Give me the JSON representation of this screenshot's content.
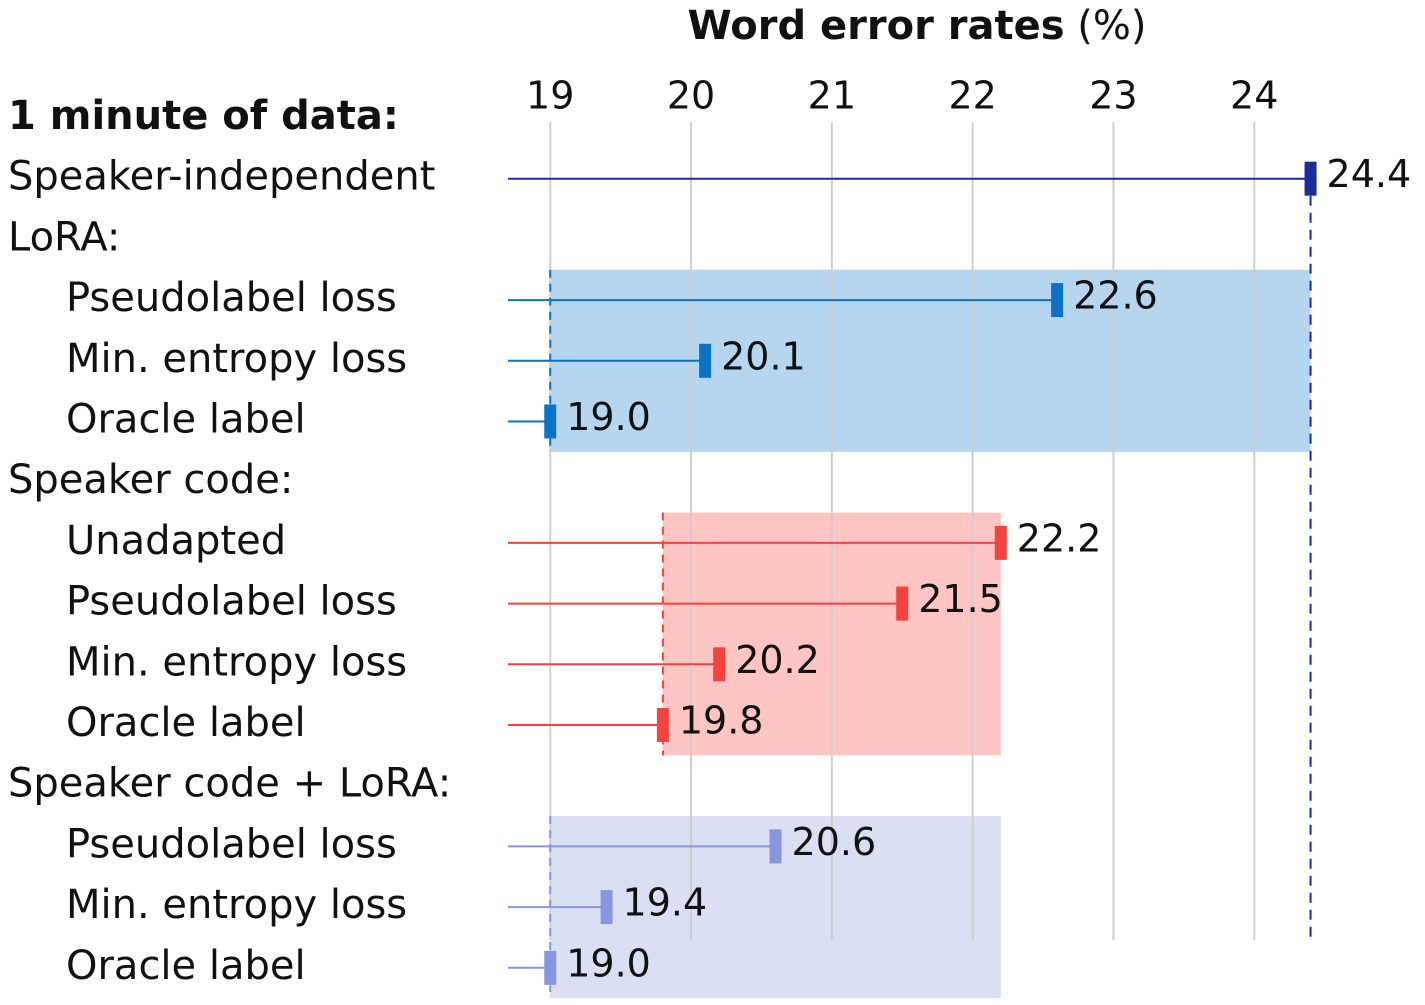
{
  "chart_data": {
    "type": "dot",
    "title": "Word error rates",
    "unit": "(%)",
    "heading": "1 minute of data:",
    "xlim": [
      18.7,
      24.7
    ],
    "xticks": [
      19,
      20,
      21,
      22,
      23,
      24
    ],
    "grid": true,
    "groups": [
      {
        "name": null,
        "color": "#1a2c9c",
        "categories": [
          "Speaker-independent"
        ],
        "values": [
          24.4
        ],
        "value_labels": [
          "24.4"
        ]
      },
      {
        "name": "LoRA:",
        "color": "#0b72c6",
        "shade": "#b5d6ee",
        "baseline_group": 0,
        "categories": [
          "Pseudolabel loss",
          "Min. entropy loss",
          "Oracle label"
        ],
        "values": [
          22.6,
          20.1,
          19.0
        ],
        "value_labels": [
          "22.6",
          "20.1",
          "19.0"
        ]
      },
      {
        "name": "Speaker code:",
        "color": "#f4433c",
        "shade": "#ffc5c3",
        "baseline_group": 2,
        "categories": [
          "Unadapted",
          "Pseudolabel loss",
          "Min. entropy loss",
          "Oracle label"
        ],
        "values": [
          22.2,
          21.5,
          20.2,
          19.8
        ],
        "value_labels": [
          "22.2",
          "21.5",
          "20.2",
          "19.8"
        ]
      },
      {
        "name": "Speaker code + LoRA:",
        "color": "#8796de",
        "shade": "#dadff3",
        "baseline_group": 2,
        "categories": [
          "Pseudolabel loss",
          "Min. entropy loss",
          "Oracle label"
        ],
        "values": [
          20.6,
          19.4,
          19.0
        ],
        "value_labels": [
          "20.6",
          "19.4",
          "19.0"
        ]
      }
    ]
  }
}
